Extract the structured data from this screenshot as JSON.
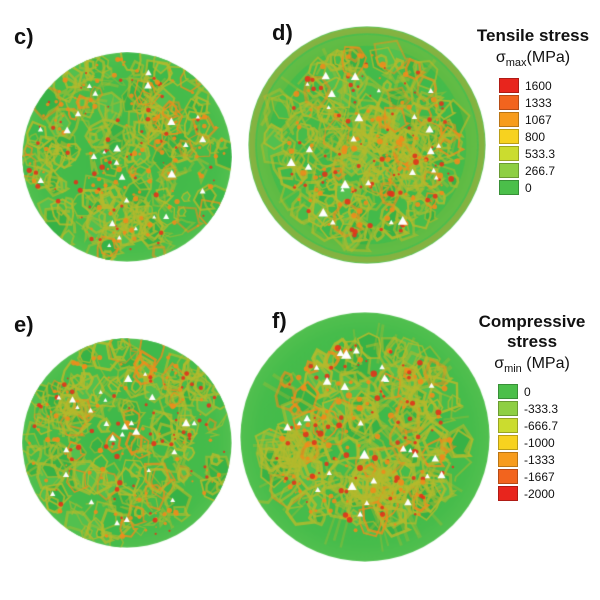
{
  "figure": {
    "panels": [
      {
        "id": "c",
        "label": "c)"
      },
      {
        "id": "d",
        "label": "d)"
      },
      {
        "id": "e",
        "label": "e)"
      },
      {
        "id": "f",
        "label": "f)"
      }
    ]
  },
  "legends": {
    "tensile": {
      "title": "Tensile stress",
      "symbol": "σ",
      "symbol_sub": "max",
      "unit": "(MPa)",
      "ticks": [
        "1600",
        "1333",
        "1067",
        "800",
        "533.3",
        "266.7",
        "0"
      ],
      "colors": [
        "#e8251d",
        "#f2641e",
        "#f79c1d",
        "#f7d21f",
        "#cbdc2f",
        "#8ecf43",
        "#4bbf4a"
      ]
    },
    "compressive": {
      "title": "Compressive stress",
      "symbol": "σ",
      "symbol_sub": "min",
      "unit": " (MPa)",
      "ticks": [
        "0",
        "-333.3",
        "-666.7",
        "-1000",
        "-1333",
        "-1667",
        "-2000"
      ],
      "colors": [
        "#4bbf4a",
        "#8ecf43",
        "#cbdc2f",
        "#f7d21f",
        "#f79c1d",
        "#f2641e",
        "#e8251d"
      ]
    }
  },
  "palette": {
    "base_green": "#3db84a",
    "cell_greens": [
      "#3eb94b",
      "#46bc4b",
      "#37b246",
      "#52c04f"
    ],
    "network_olive": "#b4ba2d",
    "hot_red": "#e0331c",
    "hot_orange": "#ef8c1c",
    "rim_orange": "#e89f2b",
    "void_white": "#ffffff"
  },
  "chart_data": [
    {
      "type": "heatmap",
      "panel": "c",
      "quantity": "tensile stress",
      "colorbar_title": "Tensile stress σmax (MPa)",
      "units": "MPa",
      "ticks": [
        1600,
        1333,
        1067,
        800,
        533.3,
        266.7,
        0
      ],
      "range": [
        0,
        1600
      ],
      "shape": "circular cross-section, granular microstructure",
      "dominant_level": "0–266.7 (green) with olive/yellow network up to ~800 and localized red spots near 1600"
    },
    {
      "type": "heatmap",
      "panel": "d",
      "quantity": "tensile stress",
      "colorbar_title": "Tensile stress σmax (MPa)",
      "units": "MPa",
      "ticks": [
        1600,
        1333,
        1067,
        800,
        533.3,
        266.7,
        0
      ],
      "range": [
        0,
        1600
      ],
      "shape": "larger circular specimen with smooth outer rim and orange-tinted boundary ring",
      "dominant_level": "0–266.7 (green) with olive/yellow network up to ~800 and localized red spots near 1600"
    },
    {
      "type": "heatmap",
      "panel": "e",
      "quantity": "compressive stress",
      "colorbar_title": "Compressive stress σmin (MPa)",
      "units": "MPa",
      "ticks": [
        0,
        -333.3,
        -666.7,
        -1000,
        -1333,
        -1667,
        -2000
      ],
      "range": [
        -2000,
        0
      ],
      "shape": "circular cross-section, granular microstructure",
      "dominant_level": "0 to -333.3 (green) with olive/yellow network and localized red spots near -2000"
    },
    {
      "type": "heatmap",
      "panel": "f",
      "quantity": "compressive stress",
      "colorbar_title": "Compressive stress σmin (MPa)",
      "units": "MPa",
      "ticks": [
        0,
        -333.3,
        -666.7,
        -1000,
        -1333,
        -1667,
        -2000
      ],
      "range": [
        -2000,
        0
      ],
      "shape": "larger circular specimen with smooth green outer rim and radial yellow streaks",
      "dominant_level": "0 to -333.3 (green) with olive/yellow network and localized red spots near -2000"
    }
  ]
}
